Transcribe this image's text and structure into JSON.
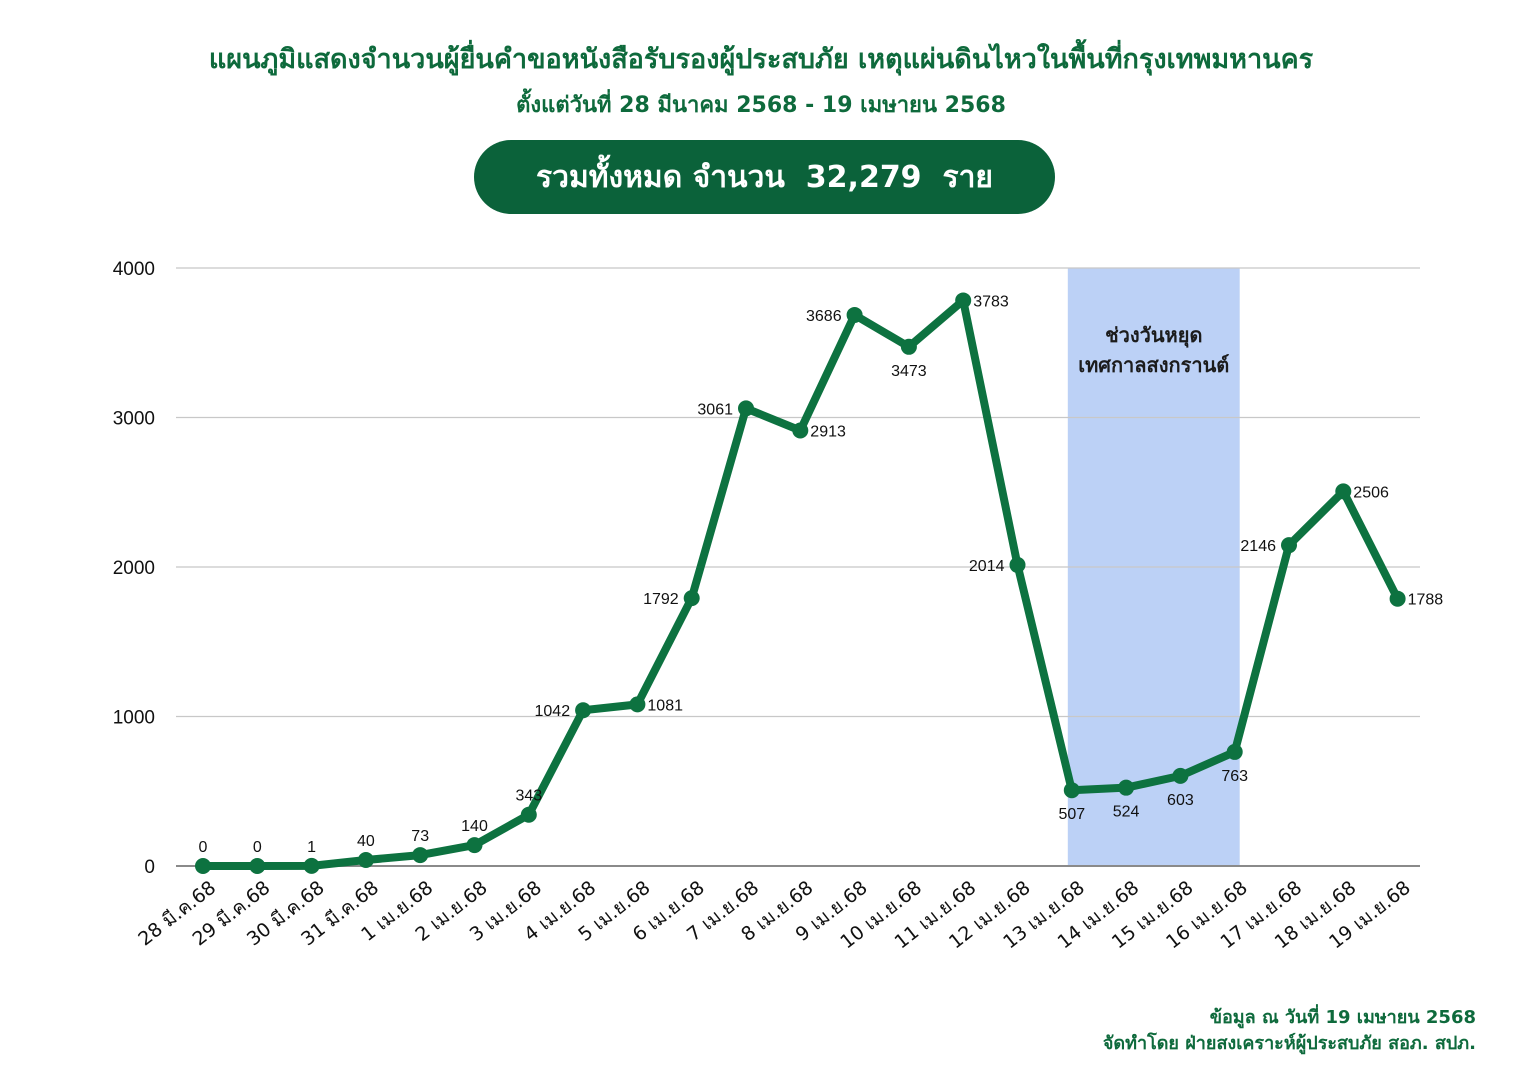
{
  "header": {
    "title": "แผนภูมิแสดงจำนวนผู้ยื่นคำขอหนังสือรับรองผู้ประสบภัย  เหตุแผ่นดินไหวในพื้นที่กรุงเทพมหานคร",
    "subtitle": "ตั้งแต่วันที่ 28 มีนาคม 2568 - 19 เมษายน 2568",
    "total": "รวมทั้งหมด จำนวน  32,279  ราย"
  },
  "footer": {
    "line1": "ข้อมูล ณ วันที่ 19 เมษายน 2568",
    "line2": "จัดทำโดย ฝ่ายสงเคราะห์ผู้ประสบภัย สอภ. สปภ."
  },
  "colors": {
    "line": "#0d7240",
    "highlight": "#bcd1f6",
    "grid": "#c8c8c8",
    "title": "#0e6a3c",
    "badge": "#0b623a"
  },
  "chart_data": {
    "type": "line",
    "categories": [
      "28 มี.ค.68",
      "29 มี.ค.68",
      "30 มี.ค.68",
      "31 มี.ค.68",
      "1 เม.ย.68",
      "2 เม.ย.68",
      "3 เม.ย.68",
      "4 เม.ย.68",
      "5 เม.ย.68",
      "6 เม.ย.68",
      "7 เม.ย.68",
      "8 เม.ย.68",
      "9 เม.ย.68",
      "10 เม.ย.68",
      "11 เม.ย.68",
      "12 เม.ย.68",
      "13 เม.ย.68",
      "14 เม.ย.68",
      "15 เม.ย.68",
      "16 เม.ย.68",
      "17 เม.ย.68",
      "18 เม.ย.68",
      "19 เม.ย.68"
    ],
    "values": [
      0,
      0,
      1,
      40,
      73,
      140,
      343,
      1042,
      1081,
      1792,
      3061,
      2913,
      3686,
      3473,
      3783,
      2014,
      507,
      524,
      603,
      763,
      2146,
      2506,
      1788
    ],
    "ylim": [
      0,
      4000
    ],
    "yticks": [
      0,
      1000,
      2000,
      3000,
      4000
    ],
    "grid": true,
    "highlight_range": {
      "from": "13 เม.ย.68",
      "to": "16 เม.ย.68",
      "label_lines": [
        "ช่วงวันหยุด",
        "เทศกาลสงกรานต์"
      ]
    }
  }
}
